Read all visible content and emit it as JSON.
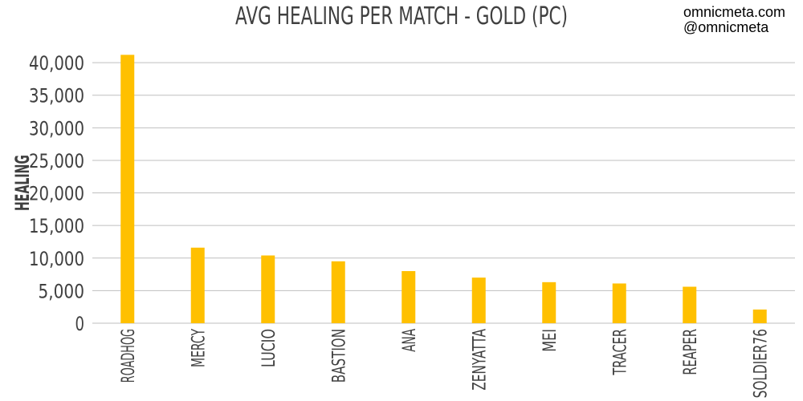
{
  "chart_data": {
    "type": "bar",
    "title": "AVG HEALING PER MATCH - GOLD (PC)",
    "ylabel": "HEALING",
    "xlabel": "",
    "categories": [
      "ROADHOG",
      "MERCY",
      "LUCIO",
      "BASTION",
      "ANA",
      "ZENYATTA",
      "MEI",
      "TRACER",
      "REAPER",
      "SOLDIER76"
    ],
    "values": [
      41200,
      11600,
      10400,
      9500,
      8000,
      7000,
      6300,
      6100,
      5600,
      2100
    ],
    "ylim": [
      0,
      41000
    ],
    "yticks": [
      0,
      5000,
      10000,
      15000,
      20000,
      25000,
      30000,
      35000,
      40000
    ],
    "ytick_labels": [
      "0",
      "5,000",
      "10,000",
      "15,000",
      "20,000",
      "25,000",
      "30,000",
      "35,000",
      "40,000"
    ],
    "grid": true,
    "legend": "none",
    "bar_color": "#FFC000",
    "grid_color": "#bfbfbf",
    "text_color": "#404040"
  },
  "credits": {
    "site": "omnicmeta.com",
    "handle": "@omnicmeta"
  }
}
